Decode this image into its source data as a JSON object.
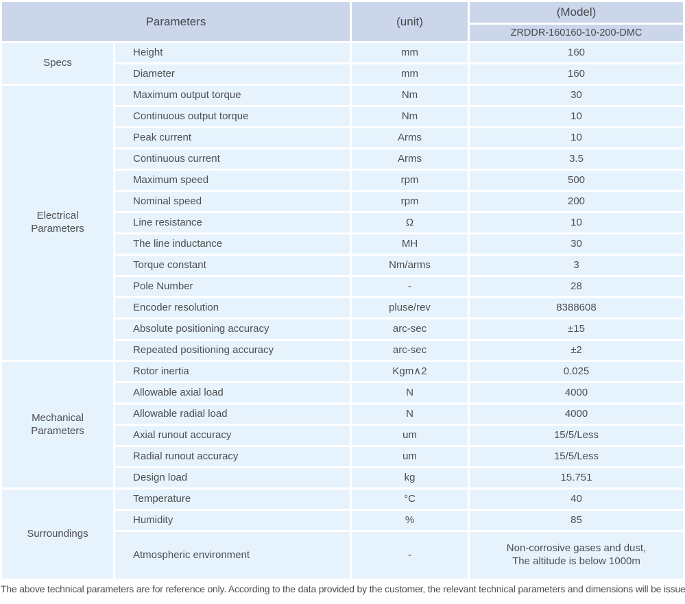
{
  "colors": {
    "header_bg": "#ccd6ea",
    "cell_bg": "#e7f3fc",
    "text": "#4b4e52"
  },
  "header": {
    "parameters_label": "Parameters",
    "unit_label": "(unit)",
    "model_label": "(Model)",
    "model_value": "ZRDDR-160160-10-200-DMC"
  },
  "sections": [
    {
      "id": "specs",
      "category": "Specs",
      "rows": [
        {
          "name": "Height",
          "unit": "mm",
          "value": "160"
        },
        {
          "name": "Diameter",
          "unit": "mm",
          "value": "160"
        }
      ]
    },
    {
      "id": "electrical-parameters",
      "category": [
        "Electrical",
        "Parameters"
      ],
      "rows": [
        {
          "name": "Maximum output torque",
          "unit": "Nm",
          "value": "30"
        },
        {
          "name": "Continuous output torque",
          "unit": "Nm",
          "value": "10"
        },
        {
          "name": "Peak current",
          "unit": "Arms",
          "value": "10"
        },
        {
          "name": "Continuous current",
          "unit": "Arms",
          "value": "3.5"
        },
        {
          "name": "Maximum speed",
          "unit": "rpm",
          "value": "500"
        },
        {
          "name": "Nominal speed",
          "unit": "rpm",
          "value": "200"
        },
        {
          "name": "Line resistance",
          "unit": "Ω",
          "value": "10"
        },
        {
          "name": "The line inductance",
          "unit": "MH",
          "value": "30"
        },
        {
          "name": "Torque constant",
          "unit": "Nm/arms",
          "value": "3"
        },
        {
          "name": "Pole Number",
          "unit": "-",
          "value": "28"
        },
        {
          "name": "Encoder resolution",
          "unit": "pluse/rev",
          "value": "8388608"
        },
        {
          "name": "Absolute positioning accuracy",
          "unit": "arc-sec",
          "value": "±15"
        },
        {
          "name": "Repeated positioning accuracy",
          "unit": "arc-sec",
          "value": "±2"
        }
      ]
    },
    {
      "id": "mechanical-parameters",
      "category": [
        "Mechanical",
        "Parameters"
      ],
      "rows": [
        {
          "name": "Rotor inertia",
          "unit": "Kgm∧2",
          "value": "0.025"
        },
        {
          "name": "Allowable axial load",
          "unit": "N",
          "value": "4000"
        },
        {
          "name": "Allowable radial load",
          "unit": "N",
          "value": "4000"
        },
        {
          "name": "Axial runout accuracy",
          "unit": "um",
          "value": "15/5/Less"
        },
        {
          "name": "Radial runout accuracy",
          "unit": "um",
          "value": "15/5/Less"
        },
        {
          "name": "Design load",
          "unit": "kg",
          "value": "15.751"
        }
      ]
    },
    {
      "id": "surroundings",
      "category": "Surroundings",
      "rows": [
        {
          "name": "Temperature",
          "unit": "°C",
          "value": "40"
        },
        {
          "name": "Humidity",
          "unit": "%",
          "value": "85"
        },
        {
          "name": "Atmospheric environment",
          "unit": "-",
          "value": [
            "Non-corrosive gases and dust,",
            "The altitude is below 1000m"
          ]
        }
      ]
    }
  ],
  "footer": {
    "note": "The above technical parameters are for reference only. According to the data provided by the customer, the relevant technical parameters and dimensions will be issued."
  }
}
